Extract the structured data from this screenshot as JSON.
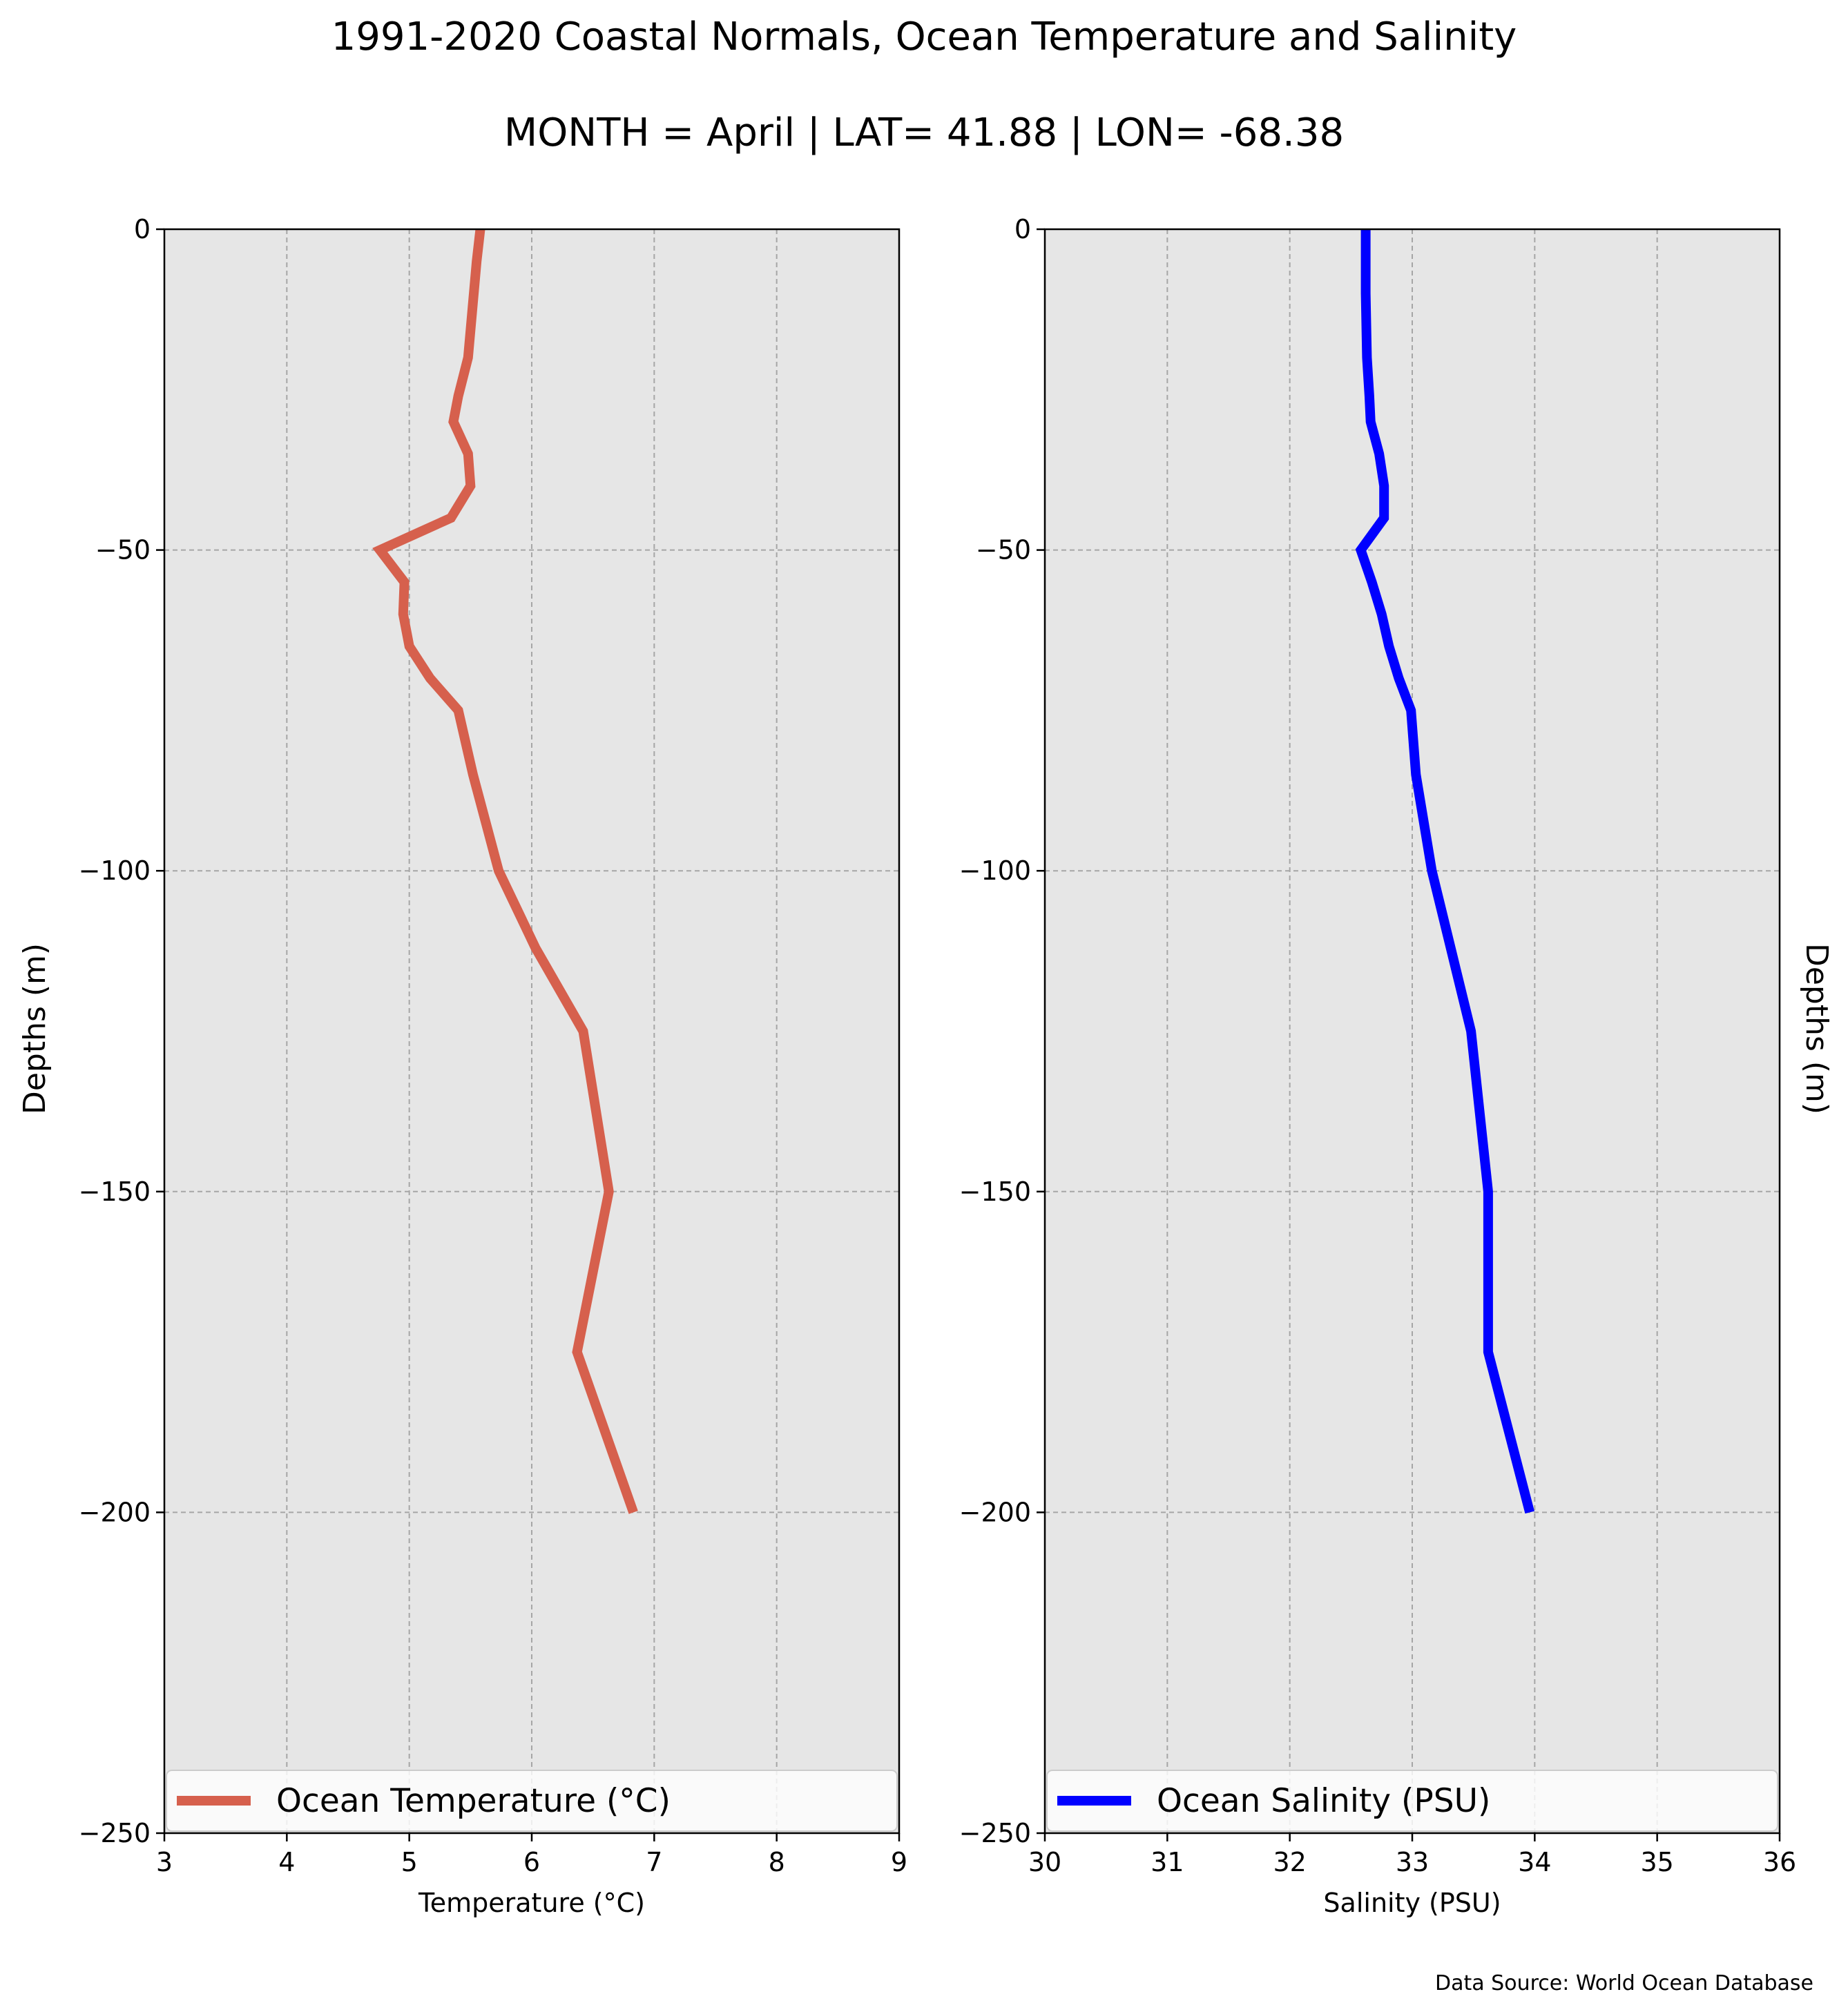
{
  "figure": {
    "title": "1991-2020 Coastal Normals, Ocean Temperature and Salinity",
    "subtitle": "MONTH = April | LAT= 41.88 | LON= -68.38",
    "source": "Data Source: World Ocean Database"
  },
  "chart_data": [
    {
      "type": "line",
      "xlabel": "Temperature (°C)",
      "ylabel": "Depths (m)",
      "xlim": [
        3,
        9
      ],
      "ylim": [
        -250,
        0
      ],
      "xticks": [
        "3",
        "4",
        "5",
        "6",
        "7",
        "8",
        "9"
      ],
      "yticks": [
        "0",
        "−50",
        "−100",
        "−150",
        "−200",
        "−250"
      ],
      "grid": true,
      "background": "#e6e6e6",
      "legend_position": "bottom",
      "series": [
        {
          "name": "Ocean Temperature (°C)",
          "color": "#d6604d",
          "x": [
            5.58,
            5.55,
            5.48,
            5.4,
            5.36,
            5.48,
            5.5,
            5.34,
            4.76,
            4.96,
            4.95,
            5.0,
            5.17,
            5.4,
            5.52,
            5.73,
            6.03,
            6.42,
            6.63,
            6.37,
            6.83
          ],
          "y": [
            0,
            -5,
            -20,
            -26,
            -30,
            -35,
            -40,
            -45,
            -50,
            -55,
            -60,
            -65,
            -70,
            -75,
            -85,
            -100,
            -112,
            -125,
            -150,
            -175,
            -200
          ]
        }
      ]
    },
    {
      "type": "line",
      "xlabel": "Salinity (PSU)",
      "ylabel": "Depths (m)",
      "xlim": [
        30,
        36
      ],
      "ylim": [
        -250,
        0
      ],
      "xticks": [
        "30",
        "31",
        "32",
        "33",
        "34",
        "35",
        "36"
      ],
      "yticks": [
        "0",
        "−50",
        "−100",
        "−150",
        "−200",
        "−250"
      ],
      "grid": true,
      "background": "#e6e6e6",
      "legend_position": "bottom",
      "series": [
        {
          "name": "Ocean Salinity (PSU)",
          "color": "#0000ff",
          "x": [
            32.62,
            32.62,
            32.63,
            32.65,
            32.66,
            32.73,
            32.77,
            32.77,
            32.58,
            32.67,
            32.75,
            32.81,
            32.89,
            32.99,
            33.03,
            33.16,
            33.48,
            33.62,
            33.62,
            33.96
          ],
          "y": [
            0,
            -10,
            -20,
            -26,
            -30,
            -35,
            -40,
            -45,
            -50,
            -55,
            -60,
            -65,
            -70,
            -75,
            -85,
            -100,
            -125,
            -150,
            -175,
            -200
          ]
        }
      ]
    }
  ]
}
